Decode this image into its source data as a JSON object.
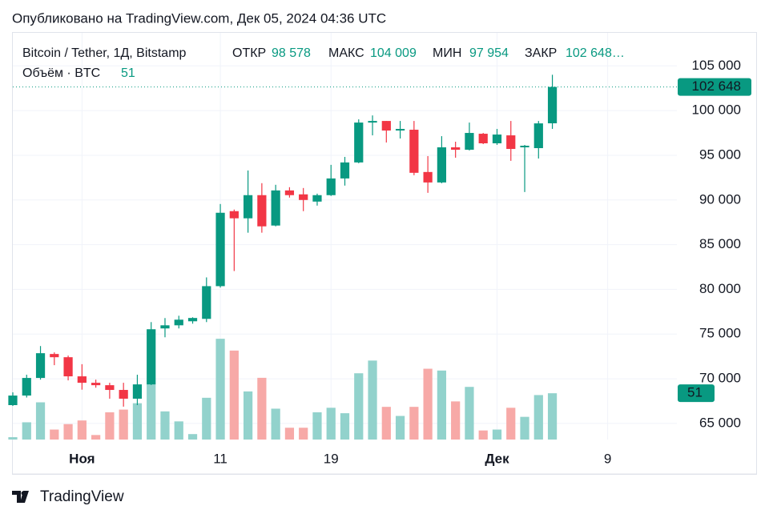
{
  "header": {
    "published": "Опубликовано на TradingView.com, Дек 05, 2024 04:36 UTC",
    "logo": "TradingView"
  },
  "chart_data": {
    "type": "candlestick",
    "title": "Bitcoin / Tether, 1Д, Bitstamp",
    "ohlc_legend": [
      {
        "label": "ОТКР",
        "value": "98 578"
      },
      {
        "label": "МАКС",
        "value": "104 009"
      },
      {
        "label": "МИН",
        "value": "97 954"
      },
      {
        "label": "ЗАКР",
        "value": "102 648…"
      }
    ],
    "volume_title": "Объём · BTC",
    "x": [
      "2024-10-27",
      "2024-10-28",
      "2024-10-29",
      "2024-10-30",
      "2024-10-31",
      "2024-11-01",
      "2024-11-02",
      "2024-11-03",
      "2024-11-04",
      "2024-11-05",
      "2024-11-06",
      "2024-11-07",
      "2024-11-08",
      "2024-11-09",
      "2024-11-10",
      "2024-11-11",
      "2024-11-12",
      "2024-11-13",
      "2024-11-14",
      "2024-11-15",
      "2024-11-16",
      "2024-11-17",
      "2024-11-18",
      "2024-11-19",
      "2024-11-20",
      "2024-11-21",
      "2024-11-22",
      "2024-11-23",
      "2024-11-24",
      "2024-11-25",
      "2024-11-26",
      "2024-11-27",
      "2024-11-28",
      "2024-11-29",
      "2024-11-30",
      "2024-12-01",
      "2024-12-02",
      "2024-12-03",
      "2024-12-04",
      "2024-12-05"
    ],
    "open": [
      67050,
      68120,
      70090,
      72770,
      72410,
      70270,
      69550,
      69280,
      68750,
      67770,
      69370,
      75630,
      75980,
      76430,
      76700,
      80360,
      88750,
      87950,
      90540,
      87140,
      91070,
      90630,
      89820,
      90540,
      92410,
      94200,
      98660,
      98840,
      97770,
      97860,
      93130,
      91960,
      95890,
      95620,
      97410,
      96340,
      97230,
      95890,
      95800,
      98578
    ],
    "high": [
      68480,
      70450,
      73660,
      72950,
      72590,
      71630,
      69900,
      69550,
      69550,
      70450,
      76340,
      76790,
      77050,
      76880,
      81340,
      89550,
      88930,
      93300,
      91880,
      91700,
      91430,
      91340,
      90710,
      93930,
      94820,
      99020,
      99460,
      98840,
      98840,
      98840,
      94910,
      97140,
      96520,
      98660,
      97500,
      97950,
      98840,
      96160,
      98840,
      104009
    ],
    "low": [
      66960,
      67900,
      69900,
      71520,
      69820,
      68780,
      69000,
      67770,
      66880,
      67050,
      69300,
      74640,
      75630,
      76160,
      76340,
      80200,
      82050,
      86340,
      86340,
      87050,
      90270,
      88750,
      89370,
      90450,
      91610,
      94110,
      97230,
      96430,
      96880,
      92770,
      90800,
      91870,
      94730,
      95540,
      96250,
      96160,
      94380,
      90890,
      94640,
      97954
    ],
    "close": [
      68120,
      70090,
      72860,
      72410,
      70270,
      69550,
      69280,
      68750,
      67770,
      69370,
      75540,
      75980,
      76610,
      76800,
      80360,
      88570,
      87950,
      90540,
      87050,
      91070,
      90540,
      90000,
      90540,
      92410,
      94200,
      98660,
      98840,
      97770,
      97950,
      93040,
      91960,
      95890,
      95620,
      97500,
      96340,
      97320,
      95710,
      96070,
      98570,
      102648
    ],
    "price_label": "102 648",
    "volume": [
      2.6,
      19,
      41,
      11,
      17,
      21,
      5,
      30,
      33,
      40,
      61,
      31,
      20,
      6,
      46,
      111,
      98,
      53,
      68,
      34,
      13,
      13,
      30,
      35,
      29,
      73,
      87,
      36,
      26,
      36,
      78,
      76,
      42,
      58,
      10,
      11,
      35,
      25,
      49,
      51
    ],
    "volume_lim": [
      0,
      448
    ],
    "up_color": "#089981",
    "down_color": "#f23645",
    "volume_up_color": "#92d2cc",
    "volume_down_color": "#f7a9a7",
    "ylim": [
      63200,
      108700
    ],
    "yticks": [
      {
        "value": 65000,
        "label": "65 000"
      },
      {
        "value": 70000,
        "label": "70 000"
      },
      {
        "value": 75000,
        "label": "75 000"
      },
      {
        "value": 80000,
        "label": "80 000"
      },
      {
        "value": 85000,
        "label": "85 000"
      },
      {
        "value": 90000,
        "label": "90 000"
      },
      {
        "value": 95000,
        "label": "95 000"
      },
      {
        "value": 100000,
        "label": "100 000"
      },
      {
        "value": 105000,
        "label": "105 000"
      }
    ],
    "xlim": [
      "2024-10-27",
      "2024-12-14"
    ],
    "xticks": [
      {
        "value": "2024-11-01",
        "label": "Ноя"
      },
      {
        "value": "2024-11-11",
        "label": "11"
      },
      {
        "value": "2024-11-19",
        "label": "19"
      },
      {
        "value": "2024-12-01",
        "label": "Дек"
      },
      {
        "value": "2024-12-09",
        "label": "9"
      }
    ],
    "grid": true
  }
}
